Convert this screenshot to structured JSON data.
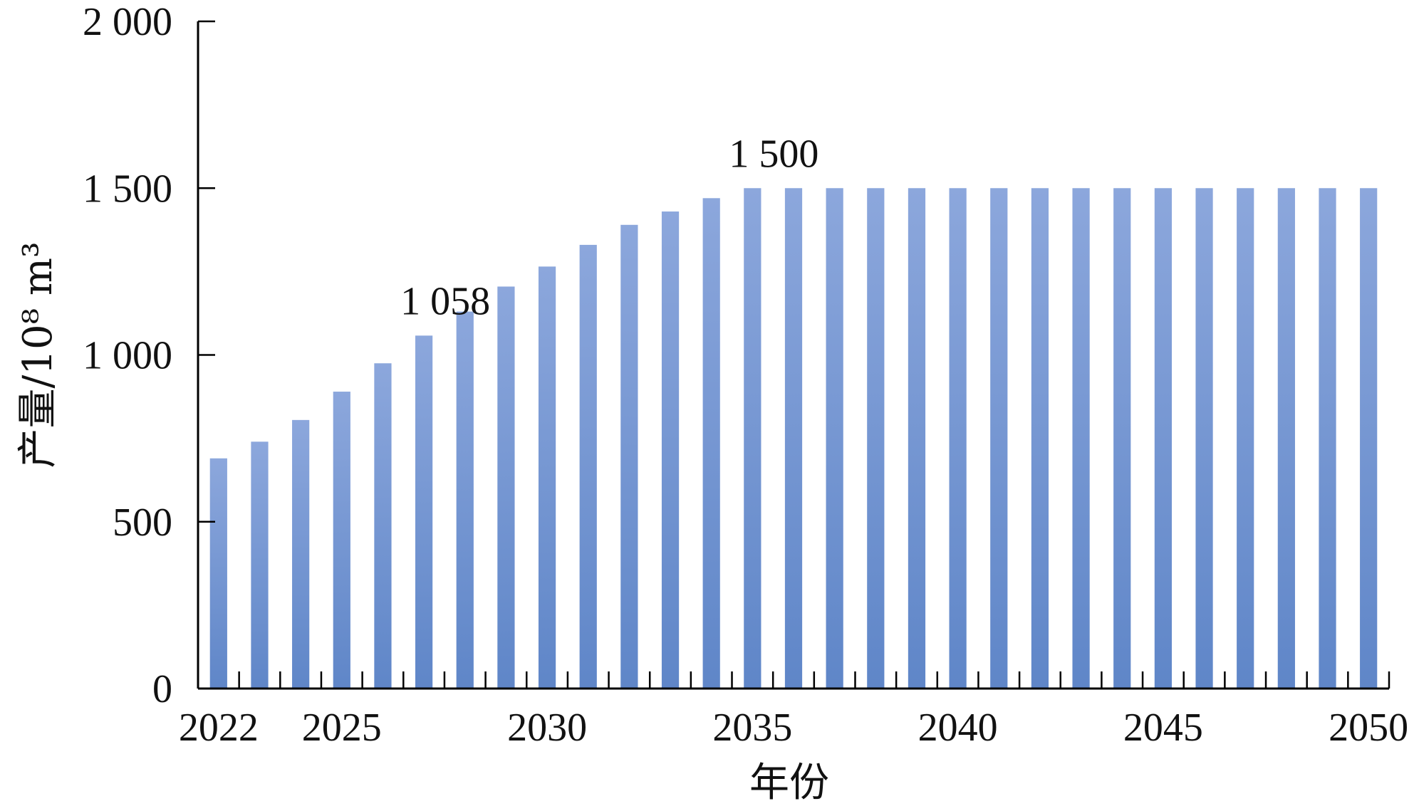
{
  "chart_data": {
    "type": "bar",
    "categories": [
      "2022",
      "2023",
      "2024",
      "2025",
      "2026",
      "2027",
      "2028",
      "2029",
      "2030",
      "2031",
      "2032",
      "2033",
      "2034",
      "2035",
      "2036",
      "2037",
      "2038",
      "2039",
      "2040",
      "2041",
      "2042",
      "2043",
      "2044",
      "2045",
      "2046",
      "2047",
      "2048",
      "2049",
      "2050"
    ],
    "values": [
      690,
      740,
      805,
      890,
      975,
      1058,
      1130,
      1205,
      1265,
      1330,
      1390,
      1430,
      1470,
      1500,
      1500,
      1500,
      1500,
      1500,
      1500,
      1500,
      1500,
      1500,
      1500,
      1500,
      1500,
      1500,
      1500,
      1500,
      1500
    ],
    "xlabel": "年份",
    "ylabel": "产量/10⁸ m³",
    "ylim": [
      0,
      2000
    ],
    "y_ticks": [
      0,
      500,
      1000,
      1500,
      2000
    ],
    "y_tick_labels": [
      "0",
      "500",
      "1 000",
      "1 500",
      "2 000"
    ],
    "x_tick_labels": [
      {
        "category": "2022",
        "label": "2022"
      },
      {
        "category": "2025",
        "label": "2025"
      },
      {
        "category": "2030",
        "label": "2030"
      },
      {
        "category": "2035",
        "label": "2035"
      },
      {
        "category": "2040",
        "label": "2040"
      },
      {
        "category": "2045",
        "label": "2045"
      },
      {
        "category": "2050",
        "label": "2050"
      }
    ],
    "data_labels": [
      {
        "category": "2027",
        "label": "1 058"
      },
      {
        "category": "2035",
        "label": "1 500"
      }
    ],
    "bar_gradient": {
      "top": "#8ca7dc",
      "bottom": "#5f86c8"
    },
    "grid": false,
    "legend": "none"
  }
}
